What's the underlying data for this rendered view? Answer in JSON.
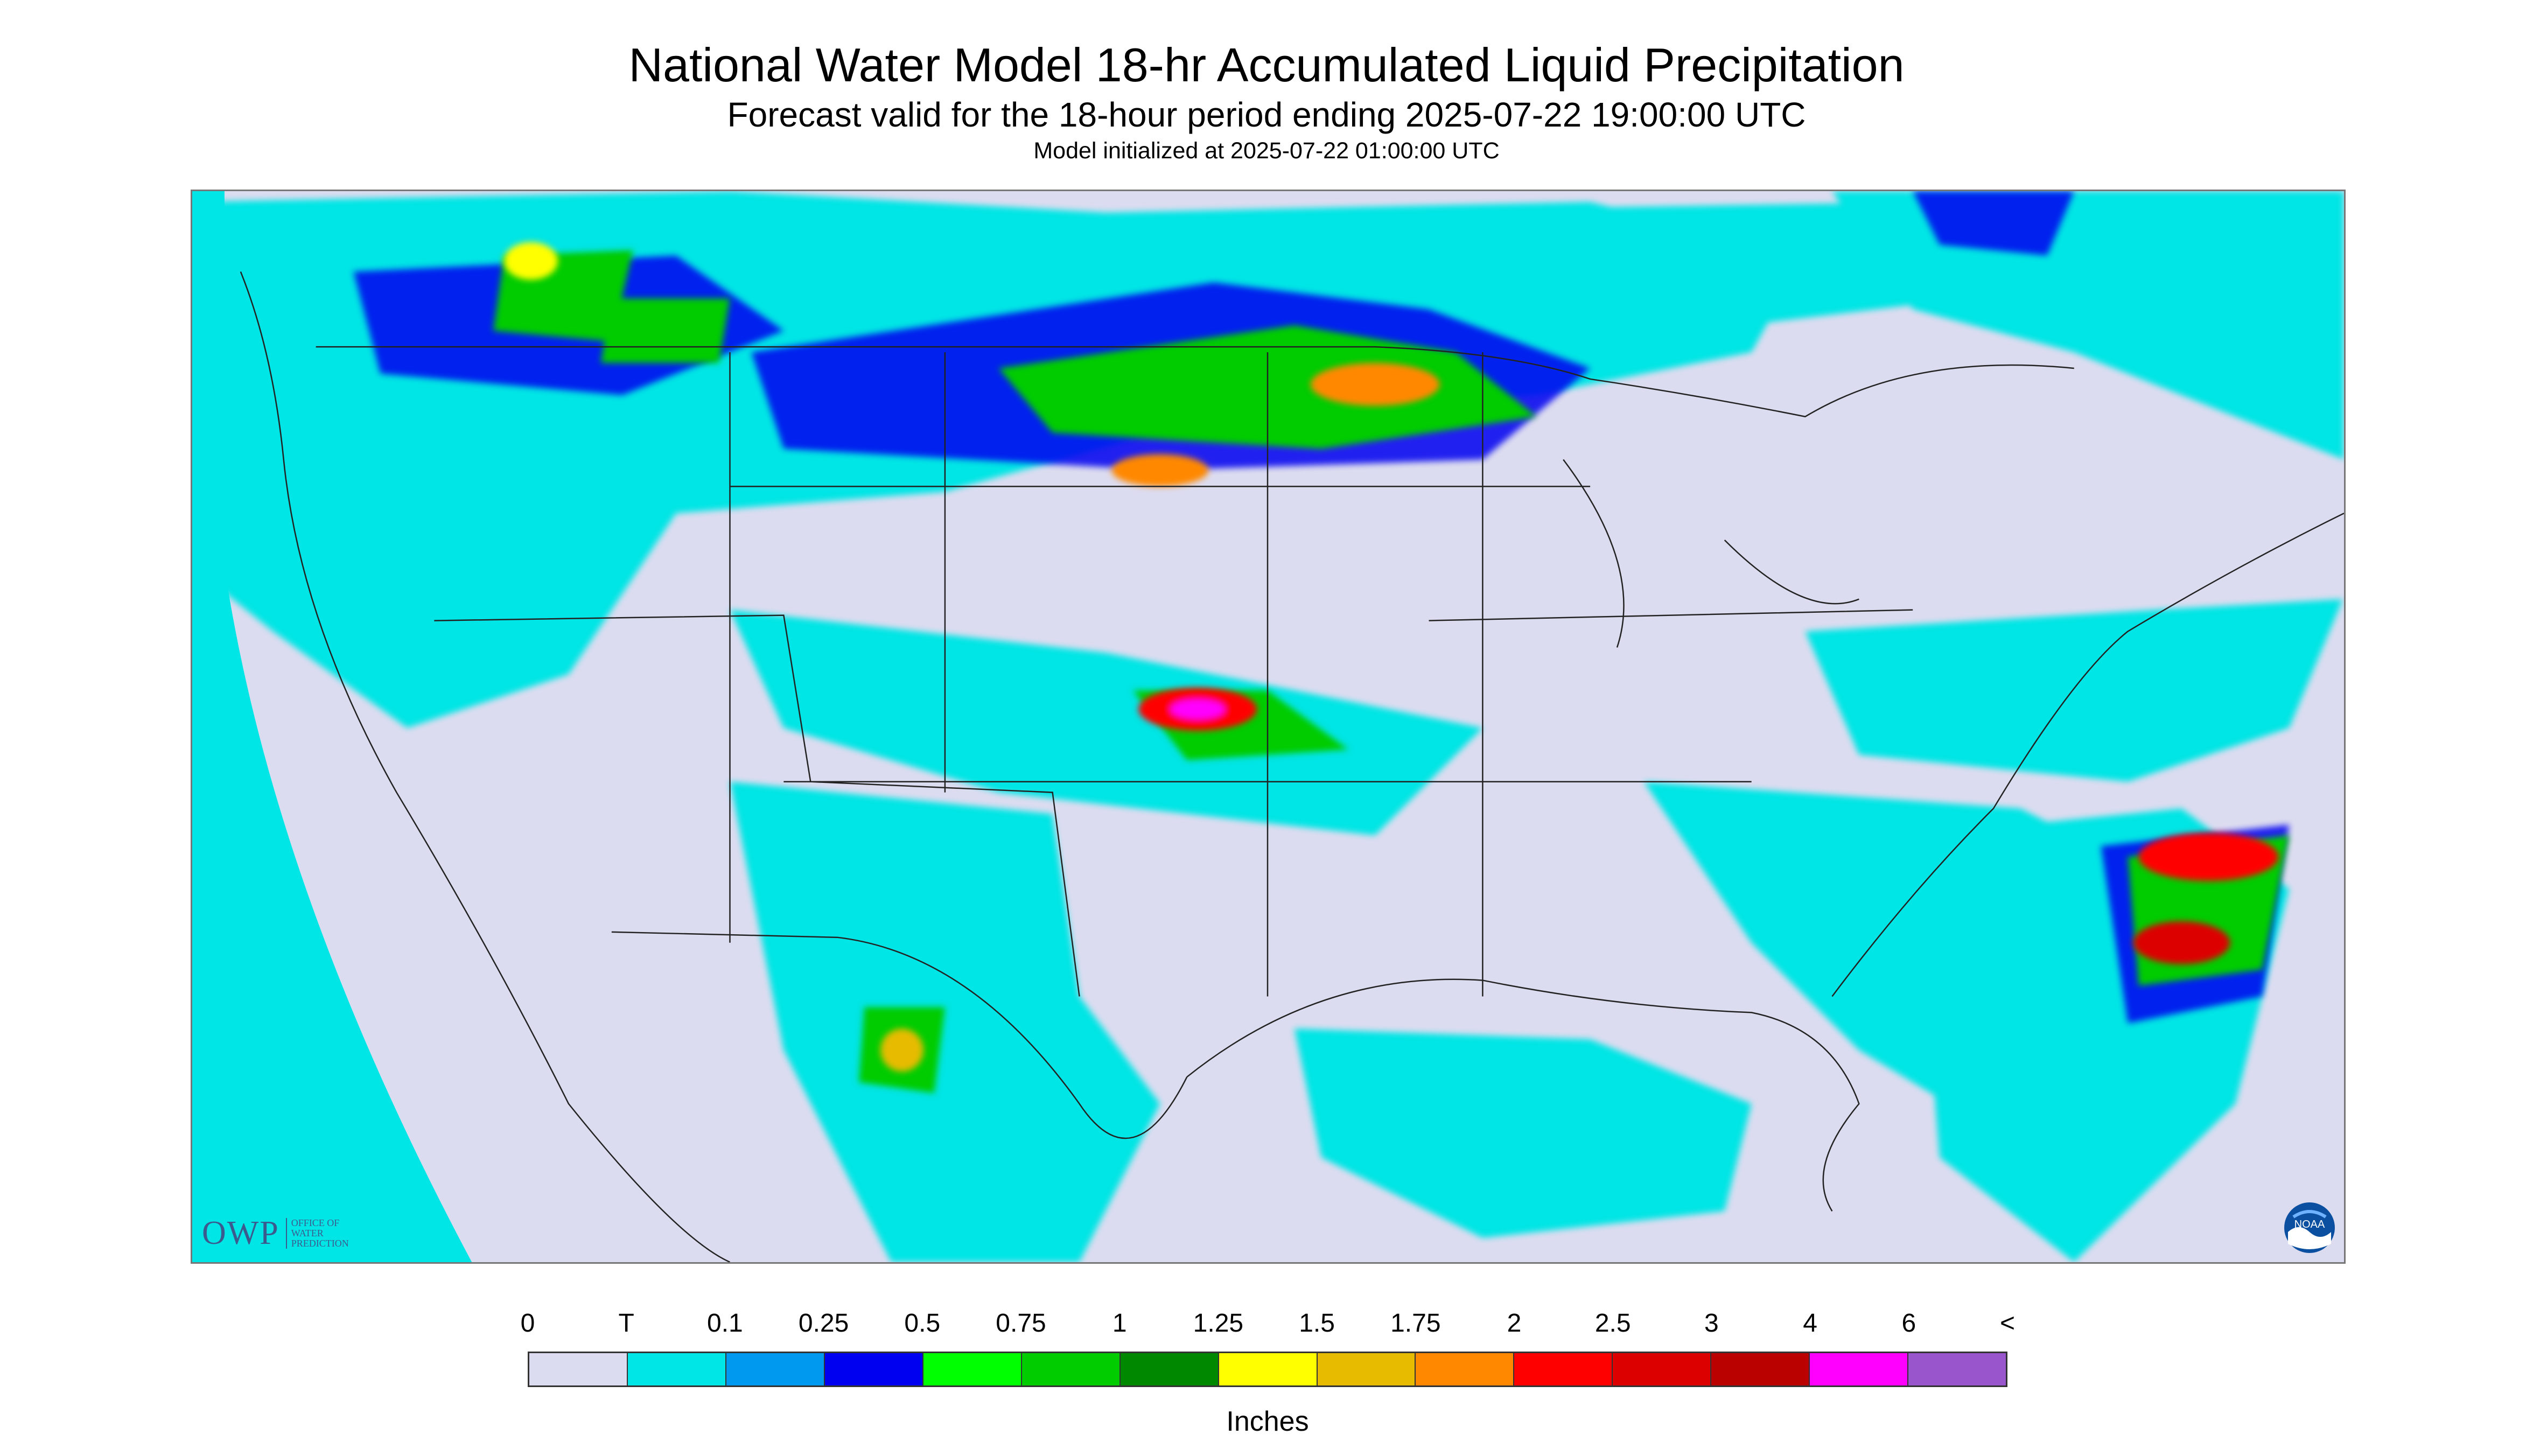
{
  "header": {
    "title": "National Water Model 18-hr Accumulated Liquid Precipitation",
    "subtitle": "Forecast valid for the 18-hour period ending 2025-07-22 19:00:00 UTC",
    "init_line": "Model initialized at 2025-07-22 01:00:00 UTC"
  },
  "logos": {
    "owp_letters": "OWP",
    "owp_sub": "OFFICE OF\nWATER\nPREDICTION",
    "noaa": "NOAA"
  },
  "legend": {
    "tick_labels": [
      "0",
      "T",
      "0.1",
      "0.25",
      "0.5",
      "0.75",
      "1",
      "1.25",
      "1.5",
      "1.75",
      "2",
      "2.5",
      "3",
      "4",
      "6",
      "<"
    ],
    "colors": [
      "#dcdcf0",
      "#00e5e5",
      "#0099f0",
      "#0000f0",
      "#00ff00",
      "#00cc00",
      "#008800",
      "#ffff00",
      "#e6bb00",
      "#ff8800",
      "#ff0000",
      "#dd0000",
      "#bb0000",
      "#ff00ff",
      "#9955cc"
    ],
    "units": "Inches"
  },
  "map": {
    "projection": "lambert-conformal-conus",
    "icon": "precipitation-map",
    "background_color": "#dcdcf0"
  }
}
